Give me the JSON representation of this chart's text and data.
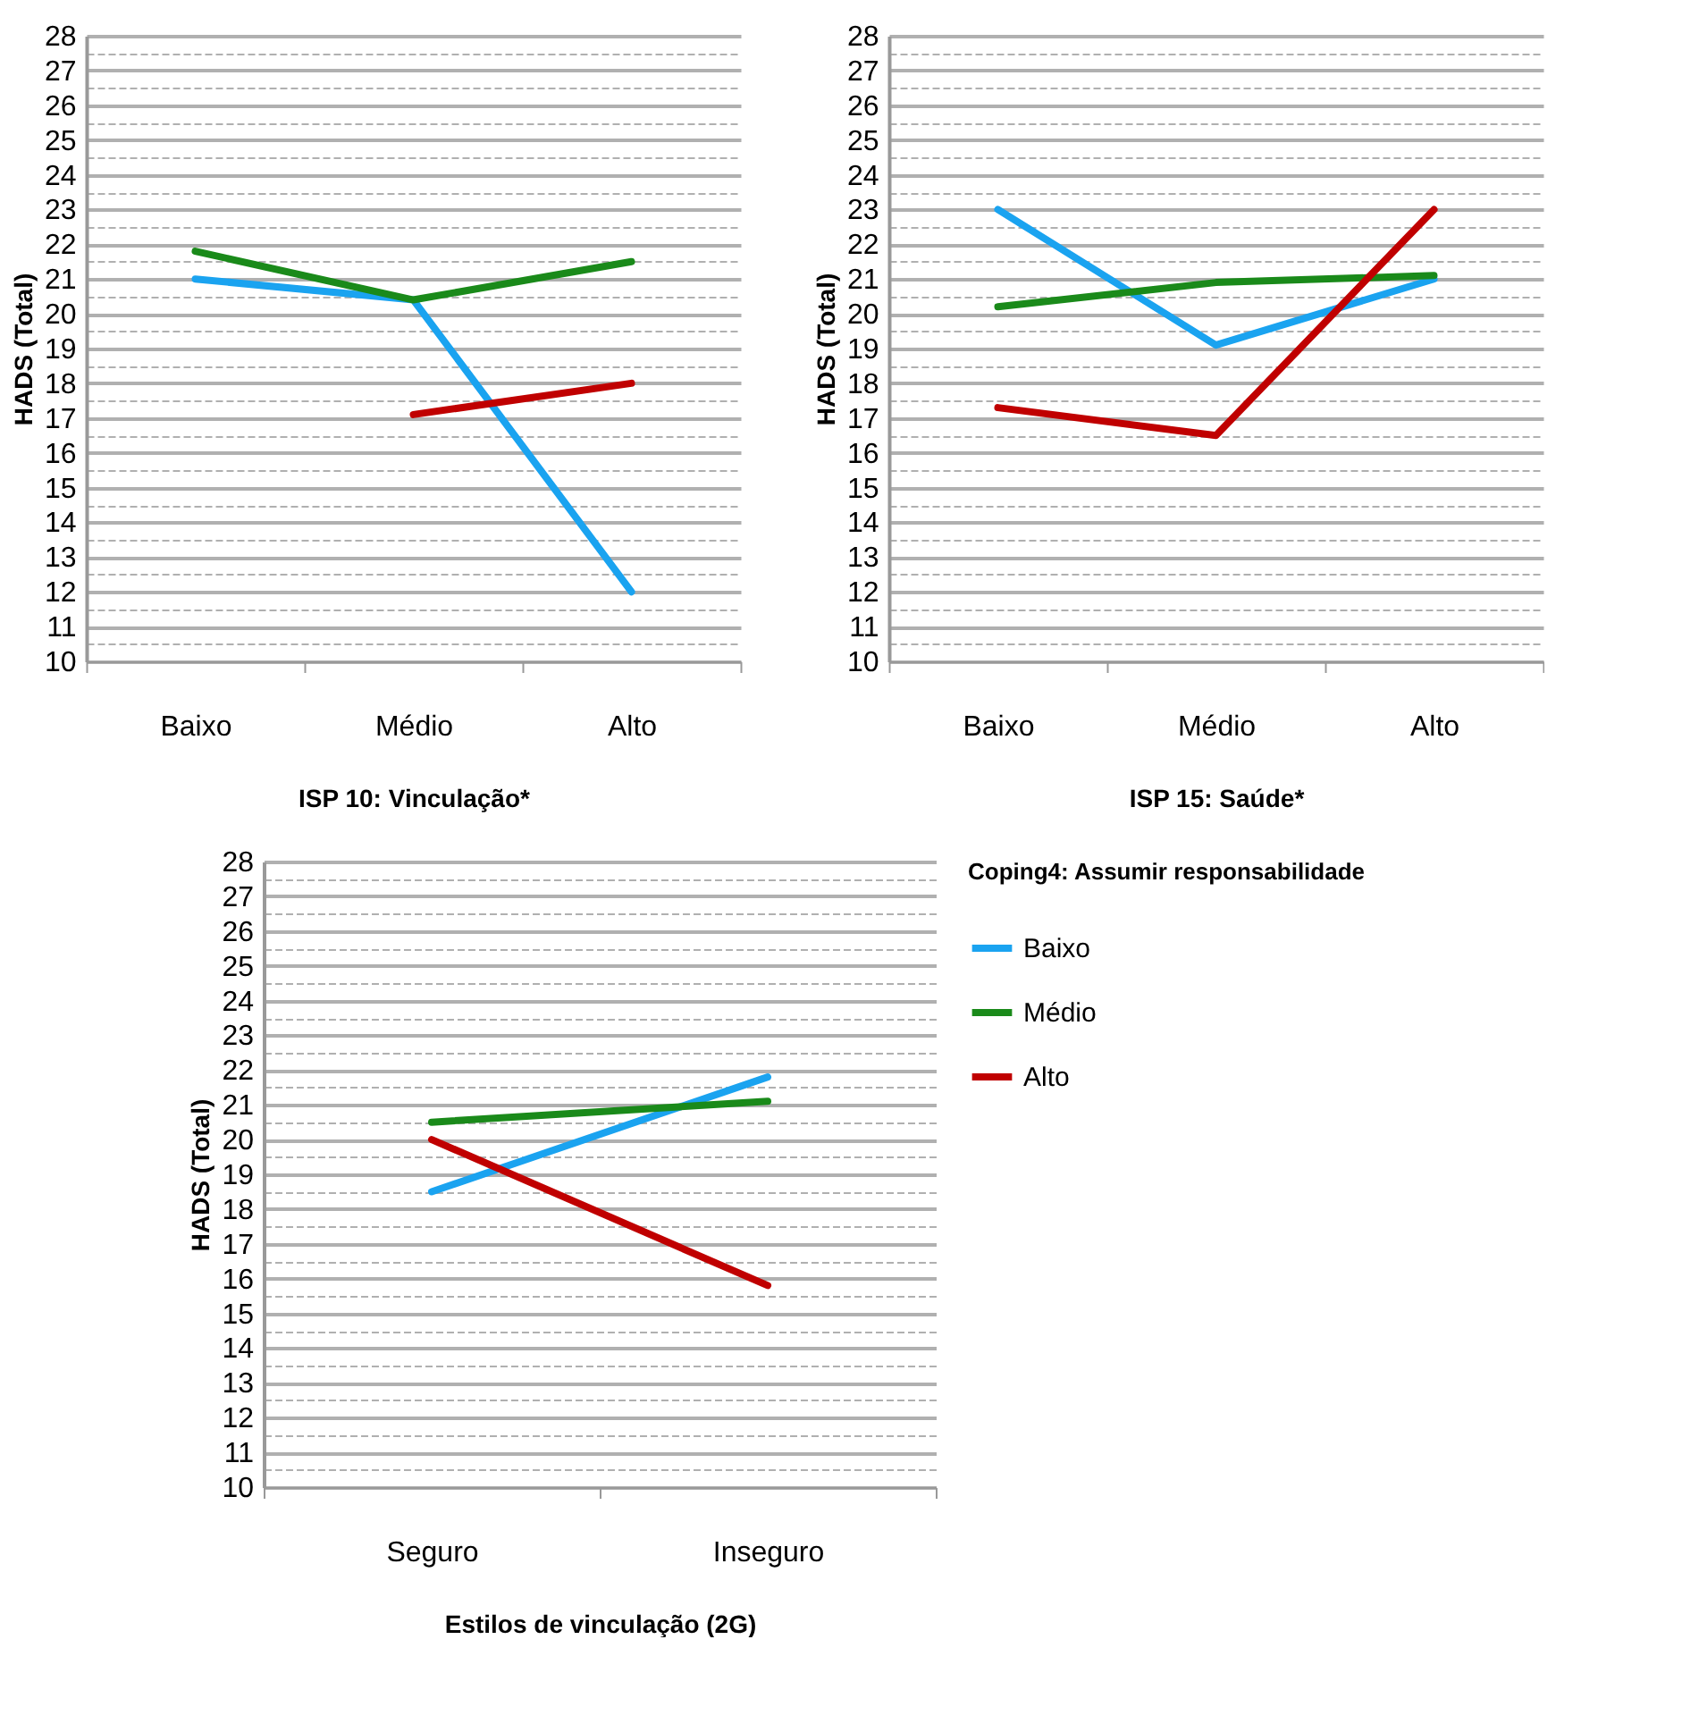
{
  "chart_data": [
    {
      "type": "line",
      "xlabel": "ISP 10:  Vinculação*",
      "ylabel": "HADS (Total)",
      "categories": [
        "Baixo",
        "Médio",
        "Alto"
      ],
      "ylim": [
        10,
        28
      ],
      "yticks": [
        10,
        {
          "value": 10.5,
          "label": null
        },
        11,
        {
          "value": 11.5,
          "label": null
        },
        12,
        {
          "value": 12.5,
          "label": null
        },
        13,
        {
          "value": 13.5,
          "label": null
        },
        14,
        {
          "value": 14.5,
          "label": null
        },
        15,
        {
          "value": 15.5,
          "label": null
        },
        16,
        {
          "value": 16.5,
          "label": null
        },
        17,
        {
          "value": 17.5,
          "label": null
        },
        18,
        {
          "value": 18.5,
          "label": null
        },
        19,
        {
          "value": 19.5,
          "label": null
        },
        20,
        {
          "value": 20.5,
          "label": null
        },
        21,
        {
          "value": 21.5,
          "label": null
        },
        22,
        {
          "value": 22.5,
          "label": null
        },
        23,
        {
          "value": 23.5,
          "label": null
        },
        24,
        {
          "value": 24.5,
          "label": null
        },
        25,
        {
          "value": 25.5,
          "label": null
        },
        26,
        {
          "value": 26.5,
          "label": null
        },
        27,
        {
          "value": 27.5,
          "label": null
        },
        28
      ],
      "grid": true,
      "series": [
        {
          "color": "#1aa3f0",
          "values": [
            21,
            20.4,
            12
          ]
        },
        {
          "color": "#1a8a1a",
          "values": [
            21.8,
            20.4,
            21.5
          ]
        },
        {
          "color": "#c00000",
          "values": [
            null,
            17.1,
            18
          ]
        }
      ]
    },
    {
      "type": "line",
      "xlabel": "ISP 15:  Saúde*",
      "ylabel": "HADS (Total)",
      "categories": [
        "Baixo",
        "Médio",
        "Alto"
      ],
      "ylim": [
        10,
        28
      ],
      "yticks": [
        10,
        {
          "value": 10.5,
          "label": null
        },
        11,
        {
          "value": 11.5,
          "label": null
        },
        12,
        {
          "value": 12.5,
          "label": null
        },
        13,
        {
          "value": 13.5,
          "label": null
        },
        14,
        {
          "value": 14.5,
          "label": null
        },
        15,
        {
          "value": 15.5,
          "label": null
        },
        16,
        {
          "value": 16.5,
          "label": null
        },
        17,
        {
          "value": 17.5,
          "label": null
        },
        18,
        {
          "value": 18.5,
          "label": null
        },
        19,
        {
          "value": 19.5,
          "label": null
        },
        20,
        {
          "value": 20.5,
          "label": null
        },
        21,
        {
          "value": 21.5,
          "label": null
        },
        22,
        {
          "value": 22.5,
          "label": null
        },
        23,
        {
          "value": 23.5,
          "label": null
        },
        24,
        {
          "value": 24.5,
          "label": null
        },
        25,
        {
          "value": 25.5,
          "label": null
        },
        26,
        {
          "value": 26.5,
          "label": null
        },
        27,
        {
          "value": 27.5,
          "label": null
        },
        28
      ],
      "grid": true,
      "series": [
        {
          "color": "#1aa3f0",
          "values": [
            23,
            19.1,
            21.0
          ]
        },
        {
          "color": "#1a8a1a",
          "values": [
            20.2,
            20.9,
            21.1
          ]
        },
        {
          "color": "#c00000",
          "values": [
            17.3,
            16.5,
            23
          ]
        }
      ]
    },
    {
      "type": "line",
      "xlabel": "Estilos de vinculação (2G)",
      "ylabel": "HADS (Total)",
      "legend_title": "Coping4: Assumir responsabilidade",
      "legend": "right",
      "categories": [
        "Seguro",
        "Inseguro"
      ],
      "ylim": [
        10,
        28
      ],
      "yticks": [
        10,
        {
          "value": 10.5,
          "label": null
        },
        11,
        {
          "value": 11.5,
          "label": null
        },
        12,
        {
          "value": 12.5,
          "label": null
        },
        13,
        {
          "value": 13.5,
          "label": null
        },
        14,
        {
          "value": 14.5,
          "label": null
        },
        15,
        {
          "value": 15.5,
          "label": null
        },
        16,
        {
          "value": 16.5,
          "label": null
        },
        17,
        {
          "value": 17.5,
          "label": null
        },
        18,
        {
          "value": 18.5,
          "label": null
        },
        19,
        {
          "value": 19.5,
          "label": null
        },
        20,
        {
          "value": 20.5,
          "label": null
        },
        21,
        {
          "value": 21.5,
          "label": null
        },
        22,
        {
          "value": 22.5,
          "label": null
        },
        23,
        {
          "value": 23.5,
          "label": null
        },
        24,
        {
          "value": 24.5,
          "label": null
        },
        25,
        {
          "value": 25.5,
          "label": null
        },
        26,
        {
          "value": 26.5,
          "label": null
        },
        27,
        {
          "value": 27.5,
          "label": null
        },
        28
      ],
      "grid": true,
      "series": [
        {
          "name": "Baixo",
          "color": "#1aa3f0",
          "values": [
            18.5,
            21.8
          ]
        },
        {
          "name": "Médio",
          "color": "#1a8a1a",
          "values": [
            20.5,
            21.1
          ]
        },
        {
          "name": "Alto",
          "color": "#c00000",
          "values": [
            20,
            15.8
          ]
        }
      ]
    }
  ]
}
